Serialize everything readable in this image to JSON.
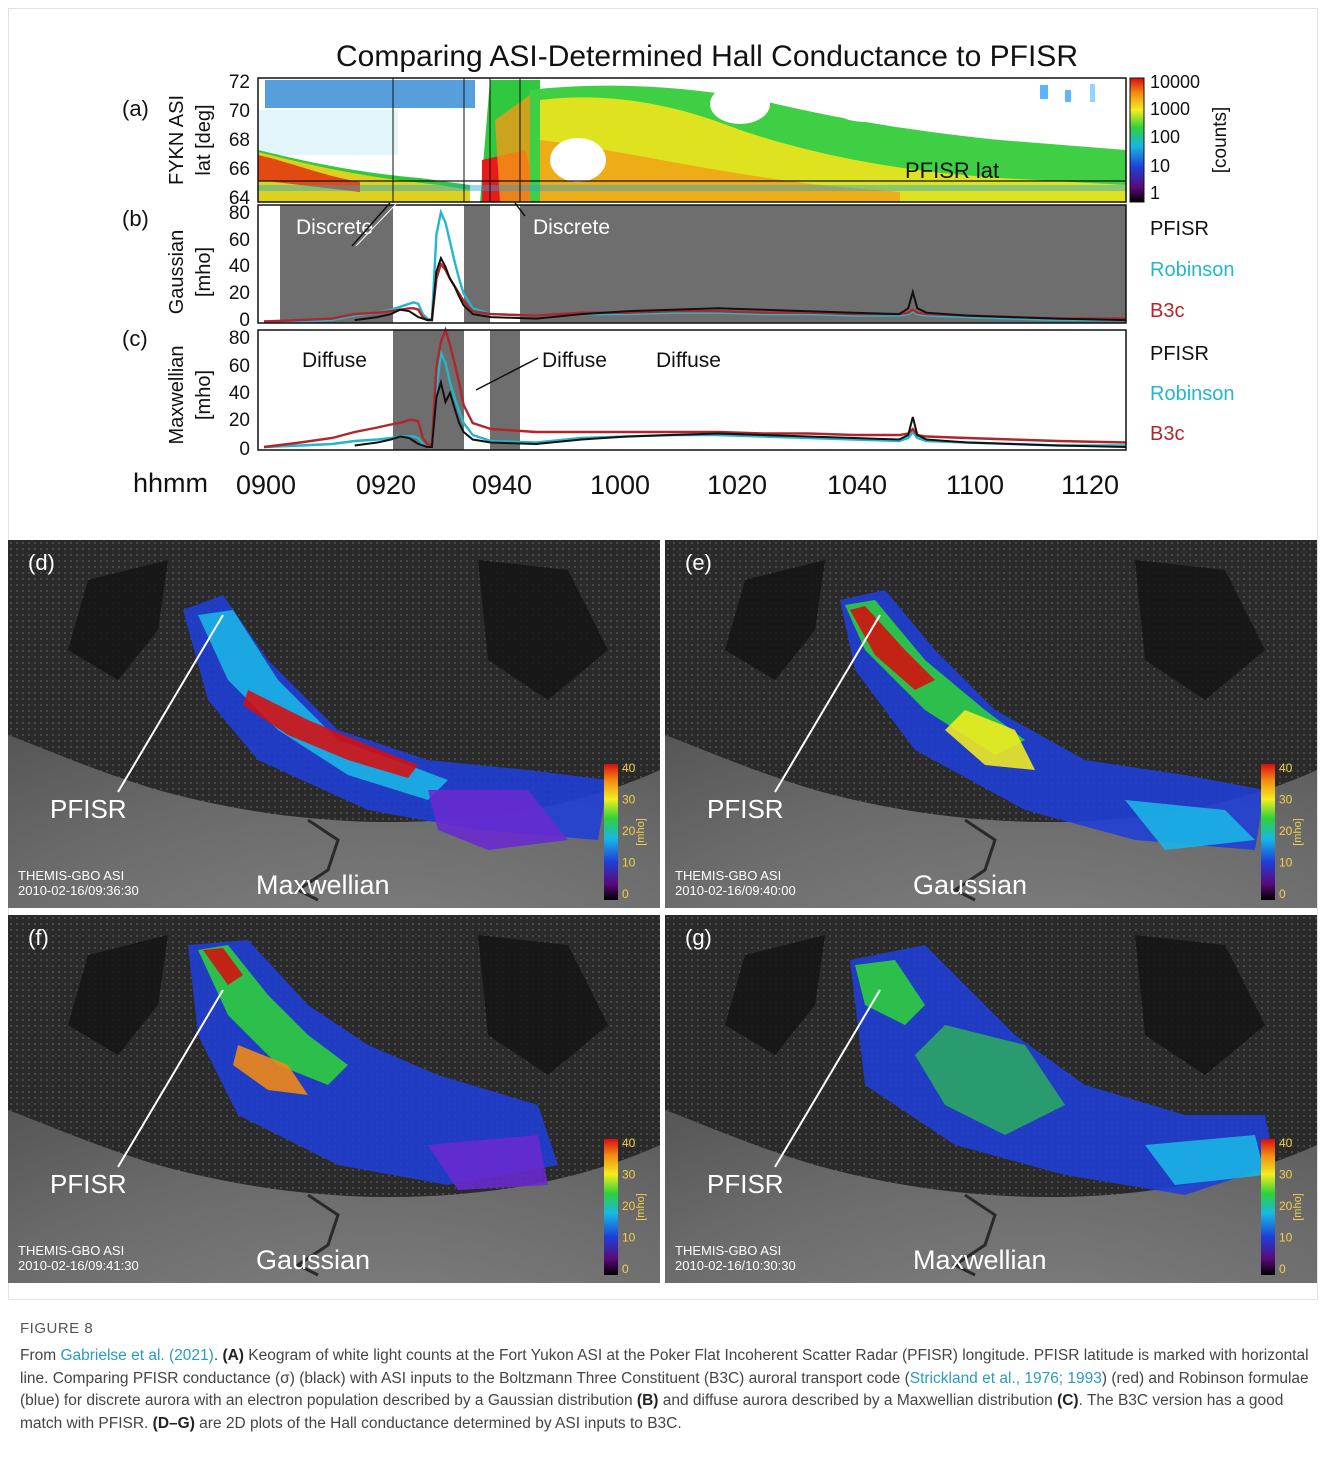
{
  "figure": {
    "title": "Comparing ASI-Determined Hall Conductance to PFISR",
    "colors": {
      "pfisr": "#111111",
      "robinson": "#22b7cc",
      "b3c": "#b1262a",
      "shade": "#6e6e6e",
      "link": "#2a9bc0"
    },
    "panel_a": {
      "label": "(a)",
      "ylabel1": "FYKN ASI",
      "ylabel2": "lat [deg]",
      "yticks": [
        "72",
        "70",
        "68",
        "66",
        "64"
      ],
      "annotation": "PFISR lat",
      "colorbar_ticks": [
        "10000",
        "1000",
        "100",
        "10",
        "1"
      ],
      "colorbar_label": "[counts]"
    },
    "panel_b": {
      "label": "(b)",
      "ylabel1": "Gaussian",
      "ylabel2": "[mho]",
      "yticks": [
        "80",
        "60",
        "40",
        "20",
        "0"
      ],
      "annotations": [
        "Discrete",
        "Discrete"
      ],
      "legend": [
        "PFISR",
        "Robinson",
        "B3c"
      ]
    },
    "panel_c": {
      "label": "(c)",
      "ylabel1": "Maxwellian",
      "ylabel2": "[mho]",
      "yticks": [
        "80",
        "60",
        "40",
        "20",
        "0"
      ],
      "annotations": [
        "Diffuse",
        "Diffuse",
        "Diffuse"
      ],
      "legend": [
        "PFISR",
        "Robinson",
        "B3c"
      ]
    },
    "time_axis": {
      "label": "hhmm",
      "ticks": [
        "0900",
        "0920",
        "0940",
        "1000",
        "1020",
        "1040",
        "1100",
        "1120"
      ]
    },
    "maps": [
      {
        "label": "(d)",
        "distribution": "Maxwellian",
        "source": "THEMIS-GBO ASI",
        "timestamp": "2010-02-16/09:36:30",
        "marker": "PFISR"
      },
      {
        "label": "(e)",
        "distribution": "Gaussian",
        "source": "THEMIS-GBO ASI",
        "timestamp": "2010-02-16/09:40:00",
        "marker": "PFISR"
      },
      {
        "label": "(f)",
        "distribution": "Gaussian",
        "source": "THEMIS-GBO ASI",
        "timestamp": "2010-02-16/09:41:30",
        "marker": "PFISR"
      },
      {
        "label": "(g)",
        "distribution": "Maxwellian",
        "source": "THEMIS-GBO ASI",
        "timestamp": "2010-02-16/10:30:30",
        "marker": "PFISR"
      }
    ],
    "map_colorbar": {
      "ticks": [
        "40",
        "30",
        "20",
        "10",
        "0"
      ],
      "unit": "[mho]"
    }
  },
  "chart_data": [
    {
      "type": "heatmap",
      "title": "Comparing ASI-Determined Hall Conductance to PFISR",
      "panel": "(a)",
      "ylabel": "FYKN ASI lat [deg]",
      "ylim": [
        64,
        72
      ],
      "xlabel": "hhmm",
      "colorbar": {
        "label": "[counts]",
        "scale": "log",
        "range": [
          1,
          10000
        ]
      },
      "pfisr_lat": 65
    },
    {
      "type": "line",
      "panel": "(b)",
      "ylabel": "Gaussian [mho]",
      "ylim": [
        0,
        80
      ],
      "x_minutes_after_0900": [
        0,
        8,
        15,
        20,
        25,
        28,
        30,
        32,
        33,
        34,
        35,
        36,
        37,
        38,
        39,
        40,
        41,
        42,
        43,
        44,
        46,
        50,
        60,
        70,
        80,
        90,
        100,
        110,
        120,
        130,
        140,
        142,
        143,
        144,
        146,
        155,
        165,
        175,
        190
      ],
      "series": [
        {
          "name": "PFISR",
          "values": [
            null,
            null,
            null,
            2,
            4,
            6,
            9,
            8,
            6,
            4,
            3,
            2,
            2,
            35,
            44,
            38,
            30,
            25,
            18,
            12,
            6,
            4,
            3,
            6,
            8,
            9,
            10,
            9,
            8,
            7,
            6,
            10,
            21,
            10,
            7,
            5,
            4,
            3,
            2
          ]
        },
        {
          "name": "Robinson",
          "values": [
            1,
            1,
            2,
            5,
            7,
            9,
            11,
            13,
            14,
            13,
            6,
            3,
            2,
            60,
            75,
            68,
            55,
            42,
            30,
            20,
            10,
            6,
            5,
            6,
            6,
            7,
            7,
            6,
            6,
            5,
            5,
            6,
            8,
            6,
            5,
            4,
            3,
            2,
            2
          ]
        },
        {
          "name": "B3c",
          "values": [
            1,
            2,
            3,
            6,
            7,
            8,
            9,
            10,
            10,
            9,
            4,
            2,
            2,
            30,
            40,
            36,
            30,
            25,
            20,
            15,
            8,
            6,
            5,
            7,
            7,
            8,
            8,
            7,
            7,
            6,
            6,
            7,
            9,
            7,
            6,
            5,
            4,
            3,
            3
          ]
        }
      ]
    },
    {
      "type": "line",
      "panel": "(c)",
      "ylabel": "Maxwellian [mho]",
      "ylim": [
        0,
        80
      ],
      "x_minutes_after_0900": [
        0,
        8,
        15,
        20,
        25,
        28,
        30,
        32,
        33,
        34,
        35,
        36,
        37,
        38,
        39,
        40,
        41,
        42,
        43,
        44,
        46,
        50,
        60,
        70,
        80,
        90,
        100,
        110,
        120,
        130,
        140,
        142,
        143,
        144,
        146,
        155,
        165,
        175,
        190
      ],
      "series": [
        {
          "name": "PFISR",
          "values": [
            null,
            null,
            null,
            3,
            5,
            7,
            9,
            8,
            6,
            4,
            3,
            2,
            2,
            35,
            45,
            32,
            38,
            28,
            18,
            12,
            7,
            5,
            4,
            7,
            9,
            10,
            11,
            10,
            9,
            8,
            7,
            10,
            22,
            10,
            7,
            5,
            4,
            3,
            2
          ]
        },
        {
          "name": "Robinson",
          "values": [
            2,
            3,
            4,
            6,
            7,
            8,
            9,
            9,
            9,
            8,
            4,
            2,
            2,
            40,
            65,
            58,
            45,
            35,
            26,
            18,
            10,
            6,
            5,
            8,
            9,
            10,
            10,
            9,
            8,
            7,
            6,
            8,
            12,
            8,
            6,
            5,
            4,
            3,
            3
          ]
        },
        {
          "name": "B3c",
          "values": [
            2,
            5,
            8,
            12,
            15,
            17,
            18,
            20,
            20,
            19,
            8,
            4,
            3,
            55,
            72,
            80,
            70,
            58,
            45,
            30,
            18,
            14,
            12,
            12,
            12,
            12,
            12,
            11,
            11,
            10,
            10,
            11,
            14,
            10,
            9,
            8,
            7,
            6,
            5
          ]
        }
      ]
    }
  ],
  "caption": {
    "label": "FIGURE 8",
    "parts": [
      {
        "t": "From ",
        "s": "n"
      },
      {
        "t": "Gabrielse et al. (2021)",
        "s": "link"
      },
      {
        "t": ". ",
        "s": "n"
      },
      {
        "t": "(A)",
        "s": "b"
      },
      {
        "t": " Keogram of white light counts at the Fort Yukon ASI at the Poker Flat Incoherent Scatter Radar (PFISR) longitude. PFISR latitude is marked with horizontal line. Comparing PFISR conductance (σ) (black) with ASI inputs to the Boltzmann Three Constituent (B3C) auroral transport code (",
        "s": "n"
      },
      {
        "t": "Strickland et al., 1976; 1993",
        "s": "link"
      },
      {
        "t": ") (red) and Robinson formulae (blue) for discrete aurora with an electron population described by a Gaussian distribution ",
        "s": "n"
      },
      {
        "t": "(B)",
        "s": "b"
      },
      {
        "t": " and diffuse aurora described by a Maxwellian distribution ",
        "s": "n"
      },
      {
        "t": "(C)",
        "s": "b"
      },
      {
        "t": ". The B3C version has a good match with PFISR. ",
        "s": "n"
      },
      {
        "t": "(D–G)",
        "s": "b"
      },
      {
        "t": " are 2D plots of the Hall conductance determined by ASI inputs to B3C.",
        "s": "n"
      }
    ]
  }
}
